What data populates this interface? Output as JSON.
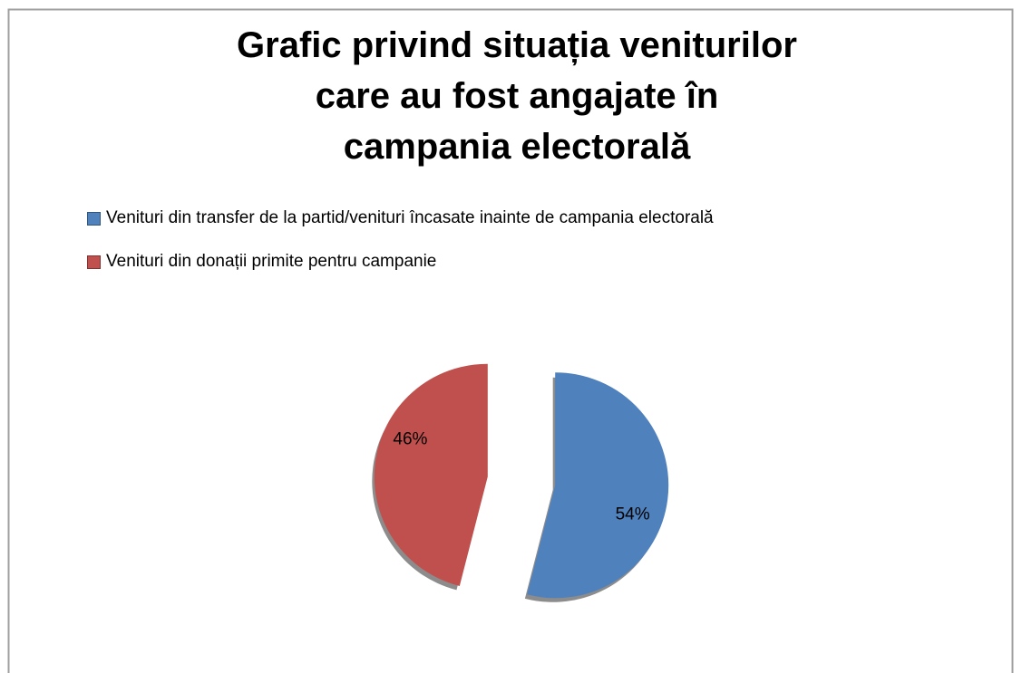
{
  "chart_data": {
    "type": "pie",
    "title": "Grafic privind situația veniturilor care au fost angajate în campania electorală",
    "categories": [
      "Venituri din transfer de la partid/venituri încasate inainte de campania electorală",
      "Venituri din donații primite pentru campanie"
    ],
    "values": [
      54,
      46
    ],
    "value_labels": [
      "54%",
      "46%"
    ],
    "colors": [
      "#4f81bd",
      "#c0504d"
    ],
    "legend": "top"
  }
}
